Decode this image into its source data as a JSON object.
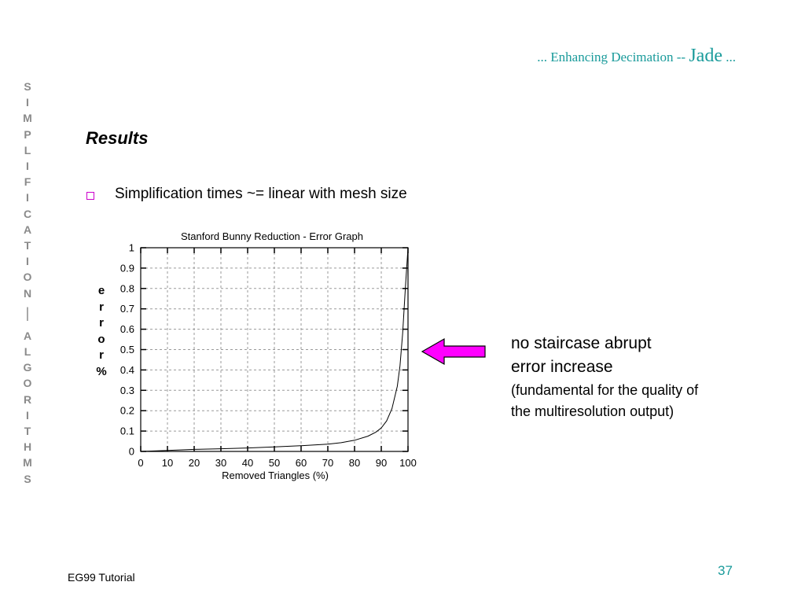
{
  "sidebar": {
    "letters_top": [
      "S",
      "I",
      "M",
      "P",
      "L",
      "I",
      "F",
      "I",
      "C",
      "A",
      "T",
      "I",
      "O",
      "N"
    ],
    "separator": "|",
    "letters_bottom": [
      "A",
      "L",
      "G",
      "O",
      "R",
      "I",
      "T",
      "H",
      "M",
      "S"
    ]
  },
  "header": {
    "title_prefix": "... Enhancing Decimation -- ",
    "title_emphasis": "Jade",
    "title_suffix": " ..."
  },
  "section_heading": "Results",
  "bullet": "Simplification times ~= linear with mesh size",
  "annotation": {
    "line1": "no staircase abrupt",
    "line2": "error increase",
    "line3": "(fundamental for the quality of",
    "line4": "the multiresolution output)",
    "arrow_color": "#ff00ff"
  },
  "footer": {
    "left": "EG99 Tutorial",
    "page_number": "37"
  },
  "colors": {
    "accent_teal": "#1a9b9b",
    "sidebar_gray": "#8a8a8a",
    "bullet_magenta": "#cc00cc"
  },
  "chart_data": {
    "type": "line",
    "title": "Stanford Bunny   Reduction - Error Graph",
    "xlabel": "Removed Triangles (%)",
    "ylabel_letters": [
      "e",
      "r",
      "r",
      "o",
      "r",
      "%"
    ],
    "xlim": [
      0,
      100
    ],
    "ylim": [
      0,
      1
    ],
    "x_ticks": [
      "0",
      "10",
      "20",
      "30",
      "40",
      "50",
      "60",
      "70",
      "80",
      "90",
      "100"
    ],
    "y_ticks": [
      "0",
      "0.1",
      "0.2",
      "0.3",
      "0.4",
      "0.5",
      "0.6",
      "0.7",
      "0.8",
      "0.9",
      "1"
    ],
    "grid": true,
    "series": [
      {
        "x": [
          0,
          10,
          20,
          30,
          40,
          50,
          60,
          70,
          75,
          80,
          85,
          88,
          90,
          92,
          94,
          96,
          97,
          98,
          99,
          100
        ],
        "y": [
          0.0,
          0.005,
          0.01,
          0.013,
          0.017,
          0.022,
          0.028,
          0.036,
          0.043,
          0.055,
          0.075,
          0.095,
          0.115,
          0.15,
          0.21,
          0.32,
          0.42,
          0.58,
          0.8,
          1.0
        ]
      }
    ]
  }
}
